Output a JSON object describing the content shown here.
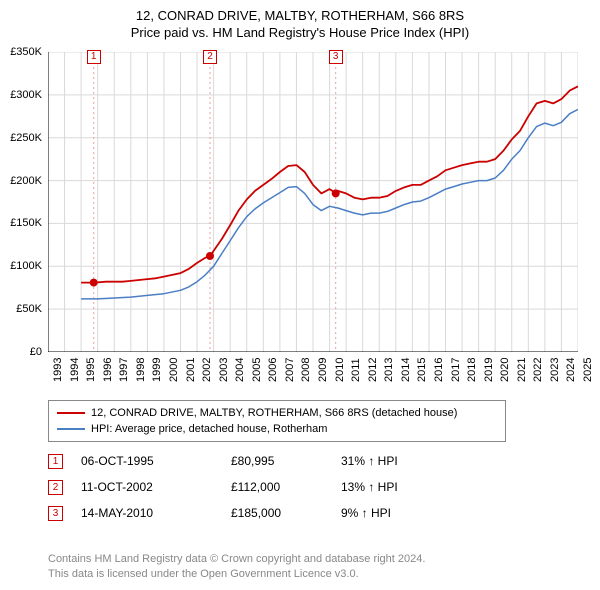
{
  "title_line1": "12, CONRAD DRIVE, MALTBY, ROTHERHAM, S66 8RS",
  "title_line2": "Price paid vs. HM Land Registry's House Price Index (HPI)",
  "chart": {
    "type": "line",
    "x_years": [
      1993,
      1994,
      1995,
      1996,
      1997,
      1998,
      1999,
      2000,
      2001,
      2002,
      2003,
      2004,
      2005,
      2006,
      2007,
      2008,
      2009,
      2010,
      2011,
      2012,
      2013,
      2014,
      2015,
      2016,
      2017,
      2018,
      2019,
      2020,
      2021,
      2022,
      2023,
      2024,
      2025
    ],
    "xlim": [
      1993,
      2025
    ],
    "ylim": [
      0,
      350000
    ],
    "ytick_step": 50000,
    "ytick_labels": [
      "£0",
      "£50K",
      "£100K",
      "£150K",
      "£200K",
      "£250K",
      "£300K",
      "£350K"
    ],
    "background_color": "#ffffff",
    "grid_color": "#d9d9d9",
    "axis_color": "#000000",
    "series": [
      {
        "name": "12, CONRAD DRIVE, MALTBY, ROTHERHAM, S66 8RS (detached house)",
        "color": "#cc0000",
        "line_width": 1.8,
        "data": [
          [
            1995.0,
            81000
          ],
          [
            1995.8,
            81000
          ],
          [
            1996.5,
            82000
          ],
          [
            1997.5,
            82000
          ],
          [
            1998.5,
            84000
          ],
          [
            1999.0,
            85000
          ],
          [
            1999.5,
            86000
          ],
          [
            2000.0,
            88000
          ],
          [
            2000.5,
            90000
          ],
          [
            2001.0,
            92000
          ],
          [
            2001.5,
            97000
          ],
          [
            2002.0,
            104000
          ],
          [
            2002.5,
            110000
          ],
          [
            2002.8,
            112000
          ],
          [
            2003.0,
            118000
          ],
          [
            2003.5,
            132000
          ],
          [
            2004.0,
            148000
          ],
          [
            2004.5,
            165000
          ],
          [
            2005.0,
            178000
          ],
          [
            2005.5,
            188000
          ],
          [
            2006.0,
            195000
          ],
          [
            2006.5,
            202000
          ],
          [
            2007.0,
            210000
          ],
          [
            2007.5,
            217000
          ],
          [
            2008.0,
            218000
          ],
          [
            2008.5,
            210000
          ],
          [
            2009.0,
            195000
          ],
          [
            2009.5,
            185000
          ],
          [
            2010.0,
            190000
          ],
          [
            2010.4,
            185000
          ],
          [
            2010.5,
            188000
          ],
          [
            2011.0,
            185000
          ],
          [
            2011.5,
            180000
          ],
          [
            2012.0,
            178000
          ],
          [
            2012.5,
            180000
          ],
          [
            2013.0,
            180000
          ],
          [
            2013.5,
            182000
          ],
          [
            2014.0,
            188000
          ],
          [
            2014.5,
            192000
          ],
          [
            2015.0,
            195000
          ],
          [
            2015.5,
            195000
          ],
          [
            2016.0,
            200000
          ],
          [
            2016.5,
            205000
          ],
          [
            2017.0,
            212000
          ],
          [
            2017.5,
            215000
          ],
          [
            2018.0,
            218000
          ],
          [
            2018.5,
            220000
          ],
          [
            2019.0,
            222000
          ],
          [
            2019.5,
            222000
          ],
          [
            2020.0,
            225000
          ],
          [
            2020.5,
            235000
          ],
          [
            2021.0,
            248000
          ],
          [
            2021.5,
            258000
          ],
          [
            2022.0,
            275000
          ],
          [
            2022.5,
            290000
          ],
          [
            2023.0,
            293000
          ],
          [
            2023.5,
            290000
          ],
          [
            2024.0,
            295000
          ],
          [
            2024.5,
            305000
          ],
          [
            2025.0,
            310000
          ]
        ]
      },
      {
        "name": "HPI: Average price, detached house, Rotherham",
        "color": "#4a7fc4",
        "line_width": 1.5,
        "data": [
          [
            1995.0,
            62000
          ],
          [
            1996.0,
            62000
          ],
          [
            1997.0,
            63000
          ],
          [
            1998.0,
            64000
          ],
          [
            1999.0,
            66000
          ],
          [
            2000.0,
            68000
          ],
          [
            2001.0,
            72000
          ],
          [
            2001.5,
            76000
          ],
          [
            2002.0,
            82000
          ],
          [
            2002.5,
            90000
          ],
          [
            2003.0,
            100000
          ],
          [
            2003.5,
            115000
          ],
          [
            2004.0,
            130000
          ],
          [
            2004.5,
            145000
          ],
          [
            2005.0,
            158000
          ],
          [
            2005.5,
            167000
          ],
          [
            2006.0,
            174000
          ],
          [
            2006.5,
            180000
          ],
          [
            2007.0,
            186000
          ],
          [
            2007.5,
            192000
          ],
          [
            2008.0,
            193000
          ],
          [
            2008.5,
            185000
          ],
          [
            2009.0,
            172000
          ],
          [
            2009.5,
            165000
          ],
          [
            2010.0,
            170000
          ],
          [
            2010.5,
            168000
          ],
          [
            2011.0,
            165000
          ],
          [
            2011.5,
            162000
          ],
          [
            2012.0,
            160000
          ],
          [
            2012.5,
            162000
          ],
          [
            2013.0,
            162000
          ],
          [
            2013.5,
            164000
          ],
          [
            2014.0,
            168000
          ],
          [
            2014.5,
            172000
          ],
          [
            2015.0,
            175000
          ],
          [
            2015.5,
            176000
          ],
          [
            2016.0,
            180000
          ],
          [
            2016.5,
            185000
          ],
          [
            2017.0,
            190000
          ],
          [
            2017.5,
            193000
          ],
          [
            2018.0,
            196000
          ],
          [
            2018.5,
            198000
          ],
          [
            2019.0,
            200000
          ],
          [
            2019.5,
            200000
          ],
          [
            2020.0,
            203000
          ],
          [
            2020.5,
            212000
          ],
          [
            2021.0,
            225000
          ],
          [
            2021.5,
            235000
          ],
          [
            2022.0,
            250000
          ],
          [
            2022.5,
            263000
          ],
          [
            2023.0,
            267000
          ],
          [
            2023.5,
            264000
          ],
          [
            2024.0,
            268000
          ],
          [
            2024.5,
            278000
          ],
          [
            2025.0,
            283000
          ]
        ]
      }
    ],
    "sales": [
      {
        "num": "1",
        "year": 1995.76,
        "price": 80995,
        "date": "06-OCT-1995",
        "price_label": "£80,995",
        "pct": "31% ↑ HPI"
      },
      {
        "num": "2",
        "year": 2002.78,
        "price": 112000,
        "date": "11-OCT-2002",
        "price_label": "£112,000",
        "pct": "13% ↑ HPI"
      },
      {
        "num": "3",
        "year": 2010.37,
        "price": 185000,
        "date": "14-MAY-2010",
        "price_label": "£185,000",
        "pct": "9% ↑ HPI"
      }
    ],
    "sale_marker_color": "#cc0000",
    "sale_line_color": "#e8a0a0",
    "sale_line_dash": "2,3"
  },
  "legend": {
    "items": [
      {
        "color": "#cc0000",
        "label": "12, CONRAD DRIVE, MALTBY, ROTHERHAM, S66 8RS (detached house)"
      },
      {
        "color": "#4a7fc4",
        "label": "HPI: Average price, detached house, Rotherham"
      }
    ]
  },
  "footer_line1": "Contains HM Land Registry data © Crown copyright and database right 2024.",
  "footer_line2": "This data is licensed under the Open Government Licence v3.0."
}
